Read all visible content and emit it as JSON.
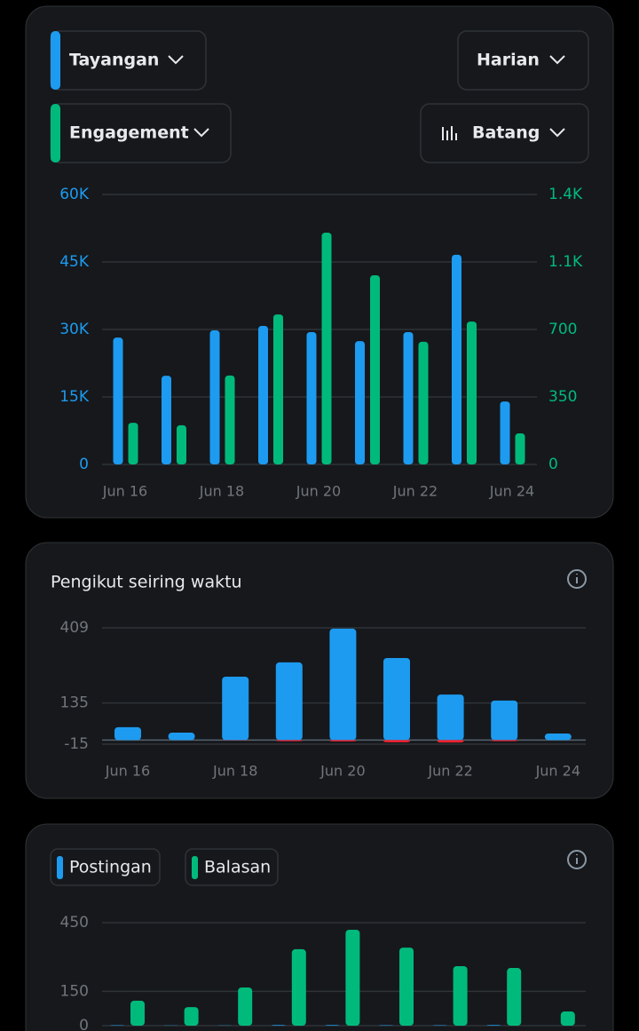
{
  "ui": {
    "interval": "Harian",
    "chart_style": "Batang"
  },
  "chart_data": [
    {
      "type": "bar",
      "categories": [
        "Jun 16",
        null,
        "Jun 18",
        null,
        "Jun 20",
        null,
        "Jun 22",
        null,
        "Jun 24"
      ],
      "series": [
        {
          "name": "Tayangan",
          "color": "#1d9bf0",
          "values": [
            28200,
            19700,
            29800,
            30800,
            29400,
            27400,
            29400,
            46600,
            14000
          ]
        },
        {
          "name": "Engagement",
          "color": "#00ba7c",
          "axis": "y2",
          "values": [
            216,
            203,
            461,
            778,
            1202,
            981,
            636,
            741,
            161
          ]
        }
      ],
      "ylim": [
        0,
        60000
      ],
      "yticks": [
        0,
        {
          "value": 15000,
          "label": "15K"
        },
        {
          "value": 30000,
          "label": "30K"
        },
        {
          "value": 45000,
          "label": "45K"
        },
        {
          "value": 60000,
          "label": "60K"
        }
      ],
      "y2lim": [
        0,
        1400
      ],
      "y2ticks": [
        0,
        350,
        700,
        {
          "value": 1050,
          "label": "1.1K"
        },
        {
          "value": 1400,
          "label": "1.4K"
        }
      ],
      "grid": true
    },
    {
      "type": "bar",
      "title": "Pengikut seiring waktu",
      "categories": [
        "Jun 16",
        null,
        "Jun 18",
        null,
        "Jun 20",
        null,
        "Jun 22",
        null,
        "Jun 24"
      ],
      "series": [
        {
          "color": "#1d9bf0",
          "values": [
            47,
            27,
            231,
            283,
            406,
            299,
            166,
            144,
            24
          ]
        },
        {
          "color": "#f4212e",
          "values": [
            0,
            0,
            -1,
            -4,
            -5,
            -8,
            -9,
            -4,
            0
          ]
        }
      ],
      "ylim": [
        -15,
        409
      ],
      "yticks": [
        -15,
        135,
        409
      ],
      "grid": true
    },
    {
      "type": "bar",
      "series": [
        {
          "name": "Postingan",
          "color": "#1d9bf0",
          "values": [
            2,
            1,
            1,
            3,
            3,
            2,
            2,
            3,
            0
          ]
        },
        {
          "name": "Balasan",
          "color": "#00ba7c",
          "values": [
            109,
            81,
            167,
            334,
            419,
            341,
            260,
            252,
            62
          ]
        }
      ],
      "ylim": [
        0,
        450
      ],
      "yticks": [
        0,
        150,
        450
      ],
      "grid": true
    }
  ]
}
